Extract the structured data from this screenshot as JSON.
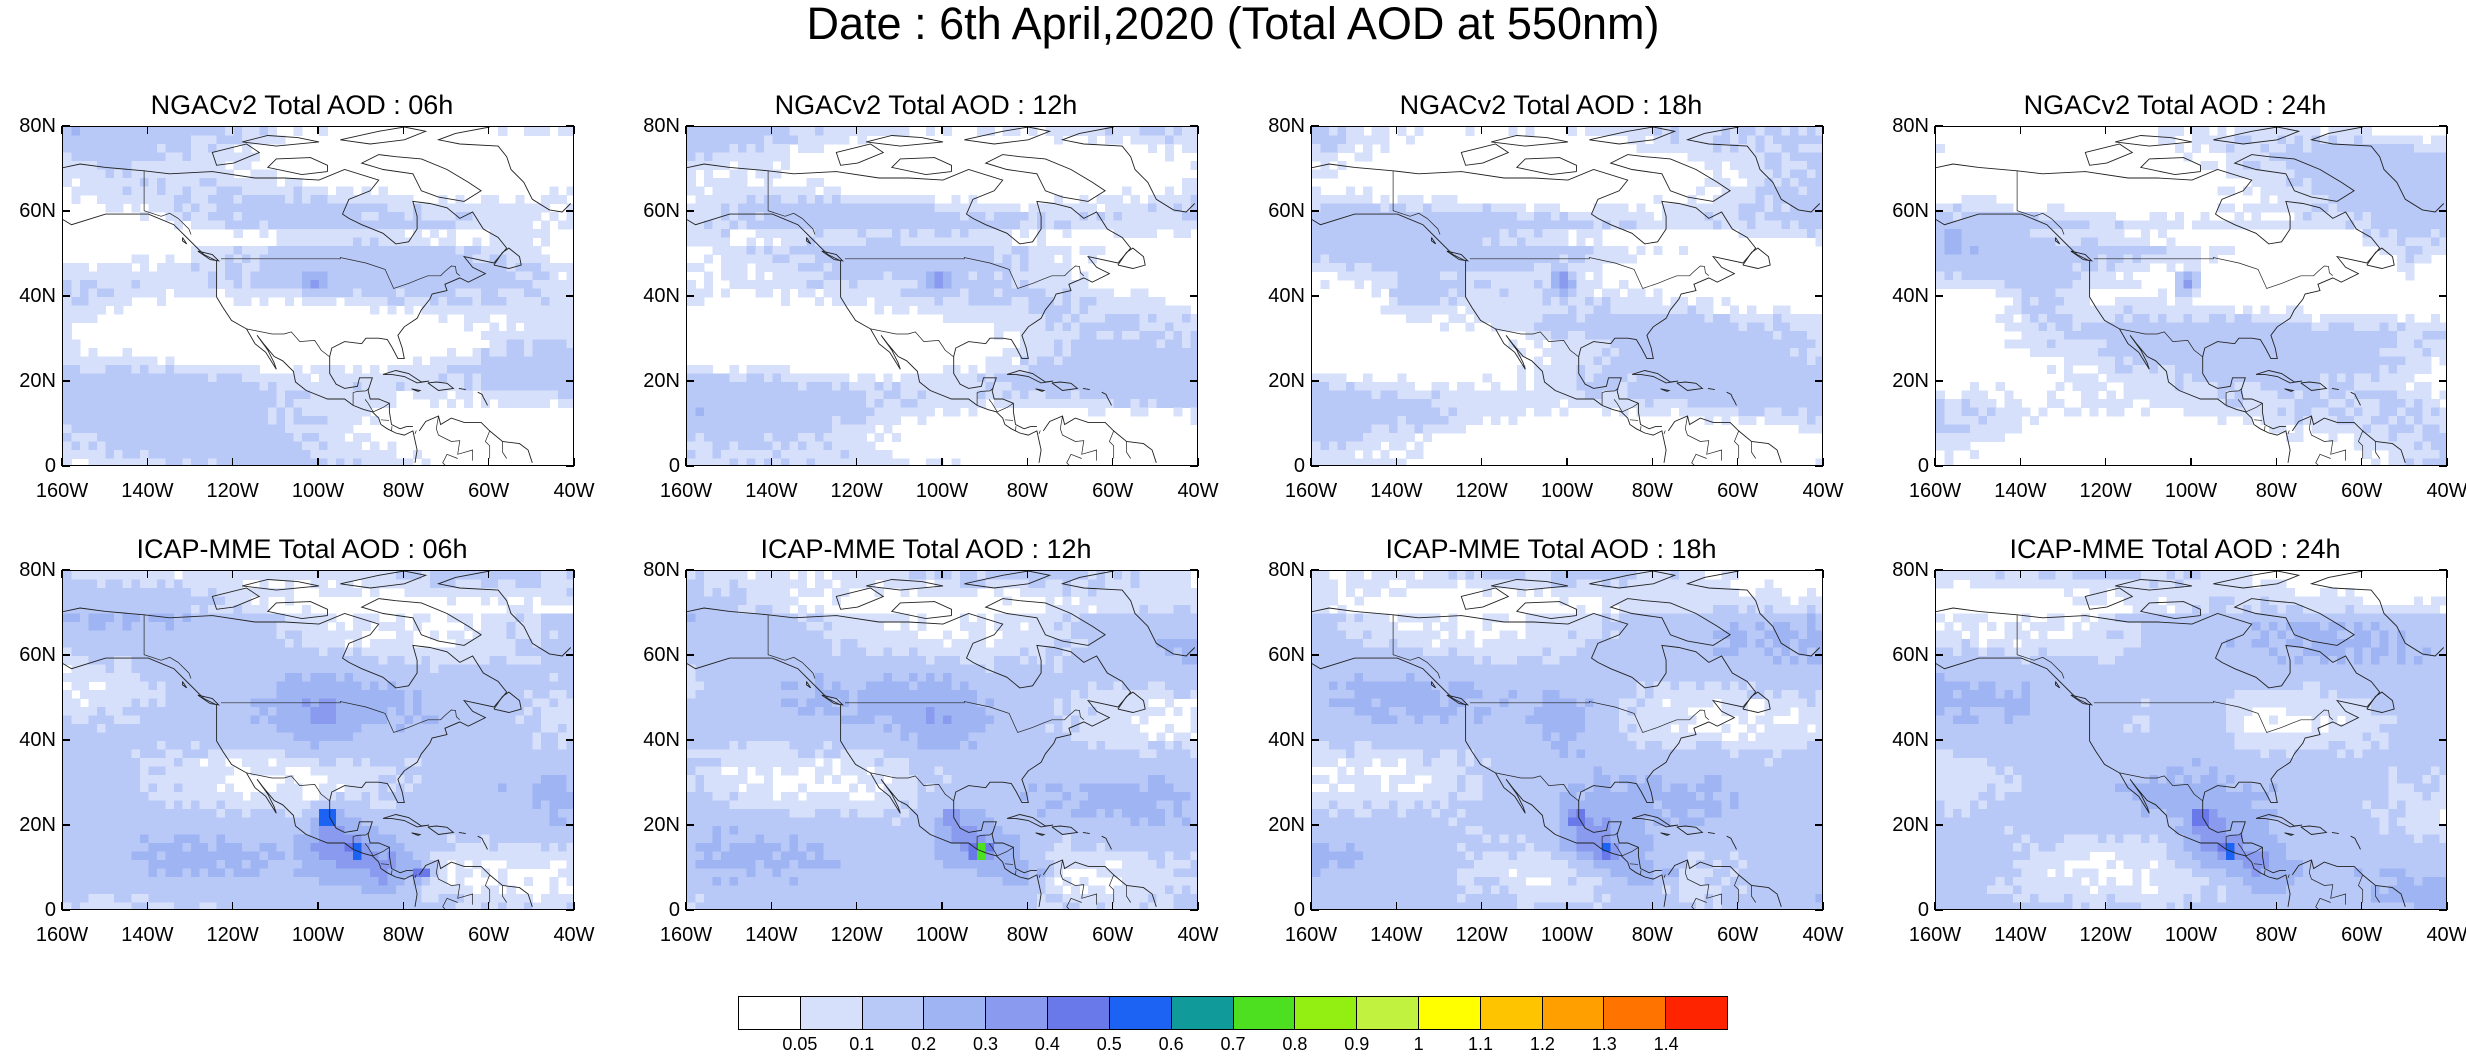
{
  "title": "Date : 6th April,2020 (Total AOD at 550nm)",
  "panels": [
    {
      "title": "NGACv2 Total AOD : 06h",
      "model": "NGACv2",
      "hour": "06h"
    },
    {
      "title": "NGACv2 Total AOD : 12h",
      "model": "NGACv2",
      "hour": "12h"
    },
    {
      "title": "NGACv2 Total AOD : 18h",
      "model": "NGACv2",
      "hour": "18h"
    },
    {
      "title": "NGACv2 Total AOD : 24h",
      "model": "NGACv2",
      "hour": "24h"
    },
    {
      "title": "ICAP-MME Total AOD : 06h",
      "model": "ICAP-MME",
      "hour": "06h"
    },
    {
      "title": "ICAP-MME Total AOD : 12h",
      "model": "ICAP-MME",
      "hour": "12h"
    },
    {
      "title": "ICAP-MME Total AOD : 18h",
      "model": "ICAP-MME",
      "hour": "18h"
    },
    {
      "title": "ICAP-MME Total AOD : 24h",
      "model": "ICAP-MME",
      "hour": "24h"
    }
  ],
  "axes": {
    "lat_labels": [
      "80N",
      "60N",
      "40N",
      "20N",
      "0"
    ],
    "lon_labels": [
      "160W",
      "140W",
      "120W",
      "100W",
      "80W",
      "60W",
      "40W"
    ]
  },
  "colorbar": {
    "labels": [
      "0.05",
      "0.1",
      "0.2",
      "0.3",
      "0.4",
      "0.5",
      "0.6",
      "0.7",
      "0.8",
      "0.9",
      "1",
      "1.1",
      "1.2",
      "1.3",
      "1.4"
    ],
    "colors": [
      "#ffffff",
      "#d6e0fb",
      "#b9c9f7",
      "#9fb4f3",
      "#8a9bef",
      "#6a79ea",
      "#1c63f4",
      "#119a9a",
      "#4de020",
      "#93ef12",
      "#c1f240",
      "#ffff00",
      "#ffc400",
      "#ff9f00",
      "#ff7300",
      "#ff2400"
    ]
  }
}
